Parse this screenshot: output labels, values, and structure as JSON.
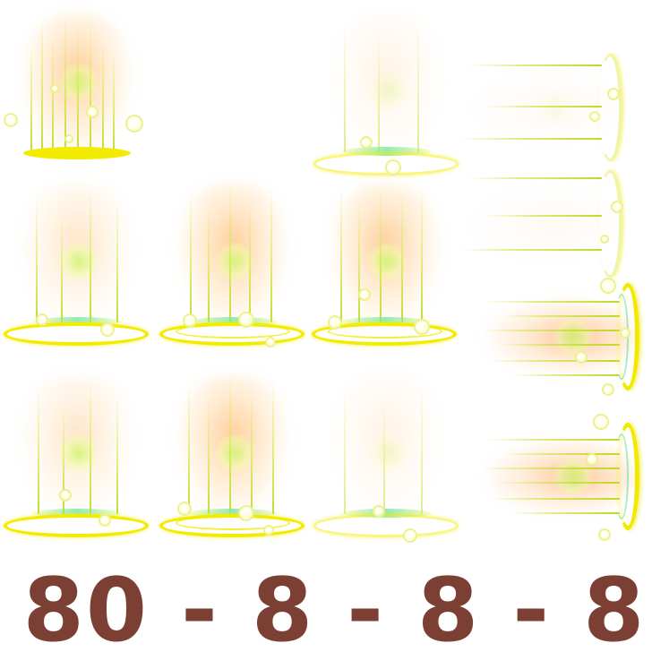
{
  "caption": {
    "text": "80 - 8 - 8 - 8",
    "color": "#7b3f33"
  },
  "sprite_sheet": {
    "rows": 4,
    "columns": 4,
    "effect_colors": {
      "ring": "#f4ec00",
      "glow": "#ffbe78",
      "ray": "#bedc28",
      "core": "#d2f578"
    },
    "frames": [
      {
        "name": "pillar-frame-1",
        "kind": "pillar-vertical"
      },
      {
        "name": "pillar-frame-2",
        "kind": "pillar-vertical"
      },
      {
        "name": "beam-frame-1",
        "kind": "beam-horizontal"
      },
      {
        "name": "pillar-frame-3",
        "kind": "pillar-vertical"
      },
      {
        "name": "pillar-frame-4",
        "kind": "pillar-vertical"
      },
      {
        "name": "pillar-frame-5",
        "kind": "pillar-vertical"
      },
      {
        "name": "beam-frame-2",
        "kind": "beam-horizontal"
      },
      {
        "name": "beam-frame-3",
        "kind": "beam-horizontal"
      },
      {
        "name": "pillar-frame-6",
        "kind": "pillar-vertical"
      },
      {
        "name": "pillar-frame-7",
        "kind": "pillar-vertical"
      },
      {
        "name": "pillar-frame-8",
        "kind": "pillar-vertical"
      },
      {
        "name": "beam-frame-4",
        "kind": "beam-horizontal"
      }
    ]
  }
}
